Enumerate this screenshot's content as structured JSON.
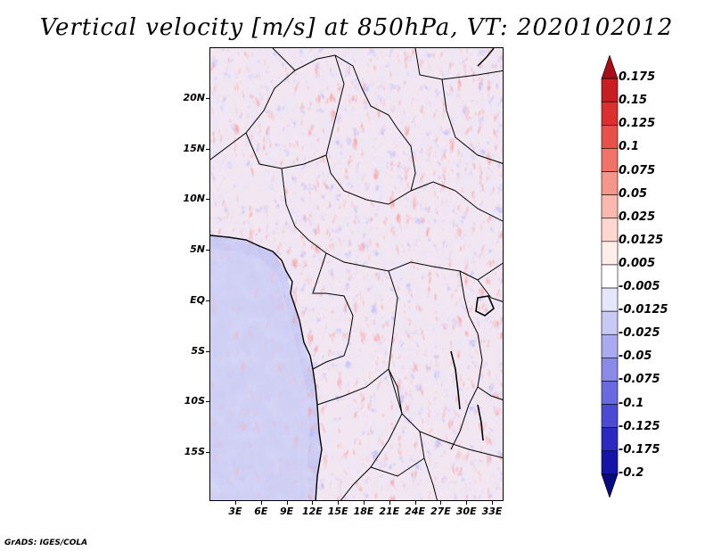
{
  "title": "Vertical velocity [m/s] at 850hPa, VT: 2020102012",
  "footer": "GrADS: IGES/COLA",
  "map": {
    "lat_labels": [
      "20N",
      "15N",
      "10N",
      "5N",
      "EQ",
      "5S",
      "10S",
      "15S"
    ],
    "lon_labels": [
      "3E",
      "6E",
      "9E",
      "12E",
      "15E",
      "18E",
      "21E",
      "24E",
      "27E",
      "30E",
      "33E"
    ],
    "field": "vertical velocity, 850 hPa",
    "color_scheme": "blue-white-red diverging"
  },
  "colorbar": {
    "labels": [
      "0.175",
      "0.15",
      "0.125",
      "0.1",
      "0.075",
      "0.05",
      "0.025",
      "0.0125",
      "0.005",
      "-0.005",
      "-0.0125",
      "-0.025",
      "-0.05",
      "-0.075",
      "-0.1",
      "-0.125",
      "-0.175",
      "-0.2"
    ],
    "colors": [
      "#a50f15",
      "#c81d22",
      "#dc2f2f",
      "#e8504a",
      "#f07268",
      "#f6968b",
      "#fab8ae",
      "#fcd6cf",
      "#feeeea",
      "#ffffff",
      "#e6e6fb",
      "#c9c9f6",
      "#aaaaf0",
      "#8a8ae8",
      "#6a6adf",
      "#4a4ad4",
      "#2a2ac2",
      "#1414a8",
      "#0a0a80"
    ]
  }
}
